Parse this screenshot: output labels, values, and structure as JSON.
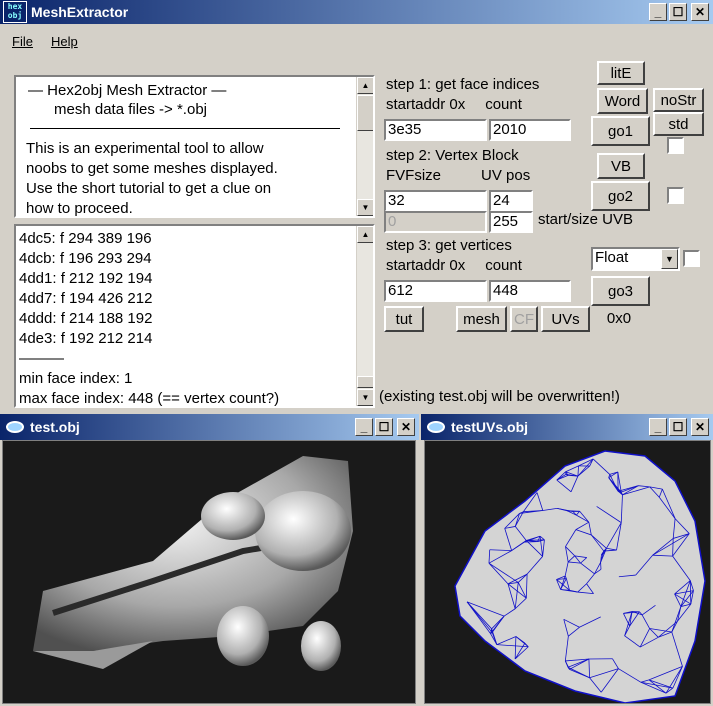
{
  "main_window": {
    "title": "MeshExtractor",
    "logo_text": "hex obj",
    "menu": [
      {
        "label": "File"
      },
      {
        "label": "Help"
      }
    ]
  },
  "info_text": {
    "title": "—   Hex2obj Mesh Extractor   —",
    "subtitle": "mesh data files -> *.obj",
    "body": [
      "This is an experimental tool to allow",
      "noobs to get some meshes displayed.",
      "Use the short tutorial to get a clue on",
      "how to proceed."
    ]
  },
  "log": {
    "lines": [
      "4dc5: f  294 389 196",
      "4dcb: f  196 293 294",
      "4dd1: f  212 192 194",
      "4dd7: f  194 426 212",
      "4ddd: f  214 188 192",
      "4de3: f  192 212 214",
      "———",
      "min face index: 1",
      "max face index: 448 (== vertex count?)"
    ]
  },
  "step1": {
    "label": "step 1: get face indices",
    "startaddr_label": "startaddr 0x",
    "count_label": "count",
    "startaddr_value": "3e35",
    "count_value": "2010"
  },
  "step2": {
    "label": "step 2: Vertex Block",
    "fvf_label": "FVFsize",
    "uvpos_label": "UV pos",
    "fvf_value": "32",
    "uvpos_value": "24",
    "uvb_start_value": "0",
    "uvb_size_value": "255",
    "uvb_label": "start/size UVB"
  },
  "step3": {
    "label": "step 3: get vertices",
    "startaddr_label": "startaddr 0x",
    "count_label": "count",
    "startaddr_value": "612",
    "count_value": "448",
    "format_selected": "Float"
  },
  "buttons": {
    "litE": "litE",
    "word": "Word",
    "nostr": "noStr",
    "std": "std",
    "go1": "go1",
    "vb": "VB",
    "go2": "go2",
    "go3": "go3",
    "tut": "tut",
    "mesh": "mesh",
    "cf": "CF",
    "uvs": "UVs",
    "dims": "0x0"
  },
  "status": "(existing test.obj will be overwritten!)",
  "mesh_window": {
    "title": "test.obj"
  },
  "uv_window": {
    "title": "testUVs.obj"
  },
  "colors": {
    "titlebar": "#0a246a",
    "uv_background": "#d4d4d4",
    "uv_wire": "#1010c8"
  }
}
